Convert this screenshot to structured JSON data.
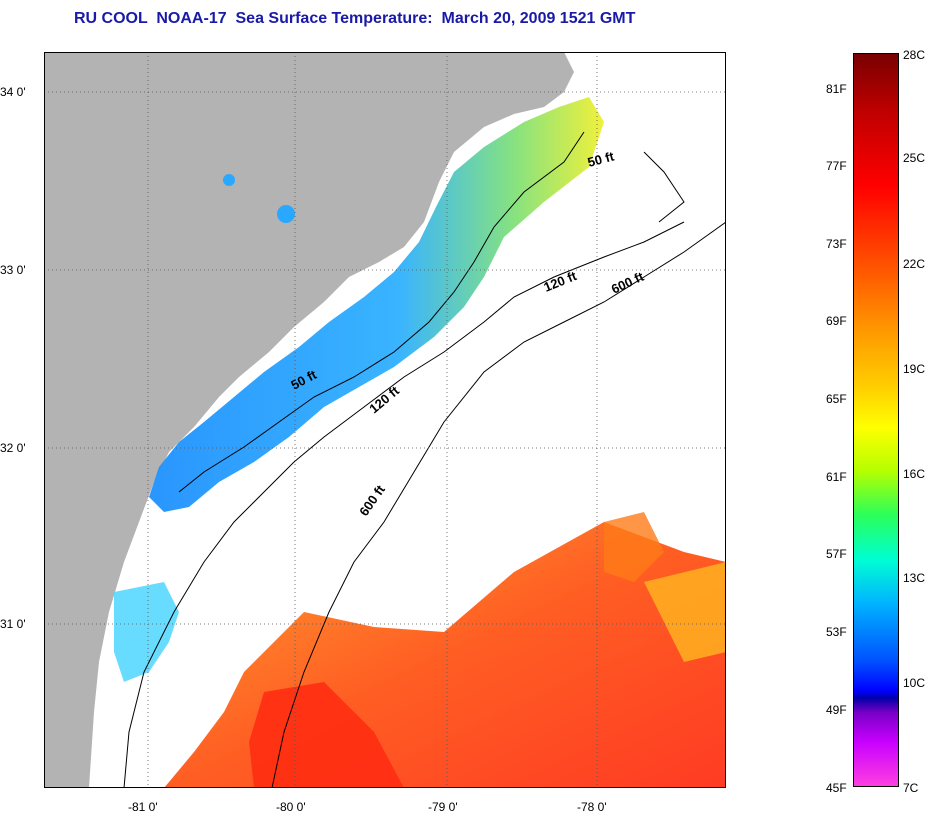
{
  "title": "RU COOL  NOAA-17  Sea Surface Temperature:  March 20, 2009 1521 GMT",
  "map": {
    "lat_labels": [
      "34 0'",
      "33 0'",
      "32 0'",
      "31 0'"
    ],
    "lon_labels": [
      "-81 0'",
      "-80 0'",
      "-79 0'",
      "-78 0'"
    ],
    "contour_labels": [
      {
        "text": "50 ft"
      },
      {
        "text": "120 ft"
      },
      {
        "text": "600 ft"
      },
      {
        "text": "50 ft"
      },
      {
        "text": "120 ft"
      },
      {
        "text": "600 ft"
      }
    ],
    "colors": {
      "land": "#b3b3b3",
      "cold": "#1e90ff",
      "mid": "#4cc3ff",
      "warm_yellow": "#f0f030",
      "warm_orange": "#ff8a1e",
      "hot_red": "#ff2a10"
    }
  },
  "colorbar": {
    "fahrenheit_labels": [
      "81F",
      "77F",
      "73F",
      "69F",
      "65F",
      "61F",
      "57F",
      "53F",
      "49F",
      "45F"
    ],
    "celsius_labels": [
      "28C",
      "25C",
      "22C",
      "19C",
      "16C",
      "13C",
      "10C",
      "7C"
    ]
  }
}
